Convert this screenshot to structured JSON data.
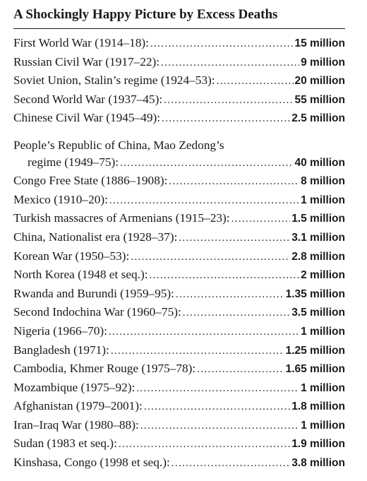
{
  "title": "A Shockingly Happy Picture by Excess Deaths",
  "entries": [
    {
      "label": "First World War (1914–18):",
      "value": "15 million"
    },
    {
      "label": "Russian Civil War (1917–22):",
      "value": "9 million"
    },
    {
      "label": "Soviet Union, Stalin’s regime (1924–53):",
      "value": "20 million"
    },
    {
      "label": "Second World War (1937–45):",
      "value": "55 million"
    },
    {
      "label": "Chinese Civil War (1945–49):",
      "value": "2.5 million"
    },
    {
      "label_line1": "People’s Republic of China, Mao Zedong’s",
      "label": "regime (1949–75):",
      "value": "40 million"
    },
    {
      "label": "Congo Free State (1886–1908):",
      "value": "8 million"
    },
    {
      "label": "Mexico (1910–20):",
      "value": "1 million"
    },
    {
      "label": "Turkish massacres of Armenians (1915–23):",
      "value": "1.5 million"
    },
    {
      "label": "China, Nationalist era (1928–37):",
      "value": "3.1 million"
    },
    {
      "label": "Korean War (1950–53):",
      "value": "2.8 million"
    },
    {
      "label": "North Korea (1948 et seq.):",
      "value": "2 million"
    },
    {
      "label": "Rwanda and Burundi (1959–95):",
      "value": "1.35 million"
    },
    {
      "label": "Second Indochina War (1960–75):",
      "value": "3.5 million"
    },
    {
      "label": "Nigeria (1966–70):",
      "value": "1 million"
    },
    {
      "label": "Bangladesh (1971):",
      "value": "1.25 million"
    },
    {
      "label": "Cambodia, Khmer Rouge (1975–78):",
      "value": "1.65 million"
    },
    {
      "label": "Mozambique (1975–92):",
      "value": "1 million"
    },
    {
      "label": "Afghanistan (1979–2001):",
      "value": "1.8 million"
    },
    {
      "label": "Iran–Iraq War (1980–88):",
      "value": "1 million"
    },
    {
      "label": "Sudan (1983 et seq.):",
      "value": "1.9 million"
    },
    {
      "label": "Kinshasa, Congo (1998 et seq.):",
      "value": "3.8 million"
    }
  ]
}
